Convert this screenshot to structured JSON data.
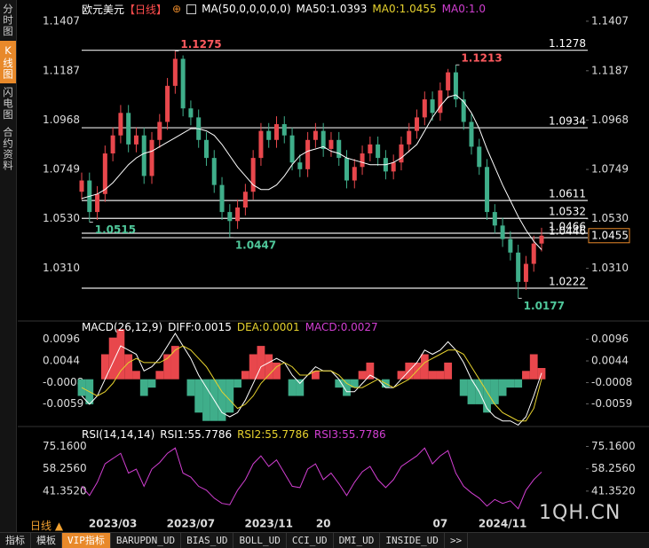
{
  "sidebar": [
    "分时图",
    "K线图",
    "闪电图",
    "合约资料"
  ],
  "period_label": "日线",
  "watermark": "1QH.CN",
  "toolbar": [
    "指标",
    "模板",
    "VIP指标",
    "BARUPDN_UD",
    "BIAS_UD",
    "BOLL_UD",
    "CCI_UD",
    "DMI_UD",
    "INSIDE_UD",
    ">>"
  ],
  "chart_data": [
    {
      "type": "candlestick",
      "title": "欧元美元",
      "period": "【日线】",
      "header_items": [
        {
          "text": "MA(50,0,0,0,0,0)",
          "color": "#ffffff"
        },
        {
          "text": "MA50:1.0393",
          "color": "#ffffff"
        },
        {
          "text": "MA0:1.0455",
          "color": "#e6d22e"
        },
        {
          "text": "MA0:1.0",
          "color": "#d23fd2"
        }
      ],
      "categories": [
        null,
        null,
        null,
        null,
        "2023/03",
        null,
        null,
        null,
        null,
        null,
        null,
        null,
        null,
        null,
        "2023/07",
        null,
        null,
        null,
        null,
        null,
        null,
        null,
        null,
        null,
        "2023/11",
        null,
        null,
        null,
        null,
        null,
        null,
        "20",
        null,
        null,
        null,
        null,
        null,
        null,
        null,
        null,
        null,
        null,
        null,
        null,
        null,
        null,
        "07",
        null,
        null,
        null,
        null,
        null,
        null,
        null,
        "2024/11",
        null,
        null,
        null,
        null,
        null
      ],
      "open": [
        1.065,
        1.07,
        1.056,
        1.064,
        1.082,
        1.09,
        1.1,
        1.086,
        1.09,
        1.072,
        1.088,
        1.096,
        1.112,
        1.124,
        1.102,
        1.098,
        1.088,
        1.08,
        1.068,
        1.056,
        1.052,
        1.058,
        1.065,
        1.08,
        1.092,
        1.088,
        1.095,
        1.09,
        1.078,
        1.075,
        1.088,
        1.092,
        1.084,
        1.088,
        1.08,
        1.07,
        1.076,
        1.082,
        1.086,
        1.08,
        1.074,
        1.078,
        1.086,
        1.092,
        1.098,
        1.106,
        1.1,
        1.11,
        1.118,
        1.106,
        1.096,
        1.085,
        1.076,
        1.056,
        1.05,
        1.044,
        1.038,
        1.025,
        1.033,
        1.042
      ],
      "high": [
        1.0735,
        1.0735,
        1.0675,
        1.0855,
        1.0935,
        1.1035,
        1.1035,
        1.0935,
        1.0935,
        1.0915,
        1.0995,
        1.1155,
        1.1275,
        1.1255,
        1.1055,
        1.1015,
        1.0915,
        1.0835,
        1.0715,
        1.0595,
        1.0615,
        1.0685,
        1.0835,
        1.0955,
        1.0955,
        1.0985,
        1.0985,
        1.0935,
        1.0815,
        1.0915,
        1.0955,
        1.0955,
        1.0915,
        1.0915,
        1.0835,
        1.0795,
        1.0855,
        1.0895,
        1.0895,
        1.0835,
        1.0815,
        1.0895,
        1.0955,
        1.1015,
        1.1095,
        1.1095,
        1.1135,
        1.1195,
        1.1213,
        1.1095,
        1.0995,
        1.0885,
        1.0795,
        1.0595,
        1.0535,
        1.0475,
        1.0415,
        1.0365,
        1.0455,
        1.049
      ],
      "low": [
        1.0615,
        1.0515,
        1.0525,
        1.0605,
        1.0785,
        1.0865,
        1.0825,
        1.0825,
        1.0685,
        1.0685,
        1.0845,
        1.0925,
        1.1085,
        1.0985,
        1.0945,
        1.0845,
        1.0765,
        1.0645,
        1.0525,
        1.0447,
        1.0485,
        1.0545,
        1.0615,
        1.0765,
        1.0845,
        1.0845,
        1.0865,
        1.0745,
        1.0715,
        1.0715,
        1.0845,
        1.0805,
        1.0805,
        1.0765,
        1.0665,
        1.0665,
        1.0725,
        1.0785,
        1.0765,
        1.0705,
        1.0705,
        1.0745,
        1.0825,
        1.0885,
        1.0945,
        1.0965,
        1.0965,
        1.1065,
        1.1025,
        1.0925,
        1.0815,
        1.0725,
        1.0525,
        1.0465,
        1.0405,
        1.0345,
        1.0177,
        1.0215,
        1.0295,
        1.0385
      ],
      "close": [
        1.07,
        1.056,
        1.064,
        1.082,
        1.09,
        1.1,
        1.086,
        1.09,
        1.072,
        1.088,
        1.096,
        1.112,
        1.124,
        1.102,
        1.098,
        1.088,
        1.08,
        1.068,
        1.056,
        1.052,
        1.058,
        1.065,
        1.08,
        1.092,
        1.088,
        1.095,
        1.09,
        1.078,
        1.075,
        1.088,
        1.092,
        1.084,
        1.088,
        1.08,
        1.07,
        1.076,
        1.082,
        1.086,
        1.08,
        1.074,
        1.078,
        1.086,
        1.092,
        1.098,
        1.106,
        1.1,
        1.11,
        1.118,
        1.106,
        1.096,
        1.085,
        1.076,
        1.056,
        1.05,
        1.044,
        1.038,
        1.025,
        1.033,
        1.042,
        1.0455
      ],
      "ma50": [
        1.062,
        1.063,
        1.064,
        1.066,
        1.069,
        1.073,
        1.077,
        1.08,
        1.082,
        1.083,
        1.085,
        1.087,
        1.089,
        1.091,
        1.093,
        1.093,
        1.092,
        1.09,
        1.086,
        1.081,
        1.076,
        1.072,
        1.068,
        1.066,
        1.066,
        1.068,
        1.072,
        1.077,
        1.081,
        1.083,
        1.084,
        1.085,
        1.083,
        1.082,
        1.08,
        1.079,
        1.078,
        1.077,
        1.077,
        1.077,
        1.078,
        1.08,
        1.083,
        1.086,
        1.092,
        1.098,
        1.103,
        1.107,
        1.108,
        1.105,
        1.1,
        1.093,
        1.084,
        1.076,
        1.068,
        1.061,
        1.054,
        1.048,
        1.043,
        1.0393
      ],
      "up_color": "#e8474c",
      "down_color": "#3fae8a",
      "ma_color": "#ffffff",
      "ylim": [
        1.0092,
        1.1446
      ],
      "yticks": [
        1.1407,
        1.1187,
        1.0968,
        1.0749,
        {
          "value": 1.053,
          "label": "1.0530"
        },
        {
          "value": 1.031,
          "label": "1.0310"
        }
      ],
      "level_lines": [
        1.1278,
        1.0934,
        1.0611,
        1.0532,
        1.0466,
        1.0446,
        1.0222
      ],
      "extremes": [
        1.1275,
        1.1213,
        1.0515,
        1.0447,
        1.0177
      ],
      "last_price": 1.0455
    },
    {
      "type": "macd",
      "header_items": [
        {
          "text": "MACD(26,12,9)",
          "color": "#ffffff"
        },
        {
          "text": "DIFF:0.0015",
          "color": "#ffffff"
        },
        {
          "text": "DEA:0.0001",
          "color": "#e6d22e"
        },
        {
          "text": "MACD:0.0027",
          "color": "#d23fd2"
        }
      ],
      "diff": [
        -0.004,
        -0.006,
        -0.004,
        0.0,
        0.004,
        0.008,
        0.007,
        0.006,
        0.002,
        0.003,
        0.005,
        0.008,
        0.011,
        0.008,
        0.005,
        0.001,
        -0.002,
        -0.005,
        -0.008,
        -0.009,
        -0.008,
        -0.005,
        -0.001,
        0.003,
        0.004,
        0.005,
        0.004,
        0.001,
        -0.001,
        0.001,
        0.003,
        0.002,
        0.002,
        0.0,
        -0.003,
        -0.003,
        -0.001,
        0.001,
        0.0,
        -0.002,
        -0.002,
        0.0,
        0.002,
        0.004,
        0.007,
        0.006,
        0.007,
        0.009,
        0.007,
        0.004,
        0.0,
        -0.003,
        -0.007,
        -0.009,
        -0.01,
        -0.01,
        -0.011,
        -0.009,
        -0.004,
        0.0015
      ],
      "dea": [
        -0.002,
        -0.003,
        -0.004,
        -0.003,
        -0.001,
        0.002,
        0.004,
        0.005,
        0.004,
        0.004,
        0.004,
        0.005,
        0.007,
        0.008,
        0.007,
        0.005,
        0.003,
        0.0,
        -0.003,
        -0.005,
        -0.007,
        -0.006,
        -0.004,
        -0.001,
        0.001,
        0.003,
        0.004,
        0.003,
        0.001,
        0.001,
        0.002,
        0.002,
        0.002,
        0.001,
        -0.001,
        -0.002,
        -0.002,
        -0.001,
        0.0,
        -0.001,
        -0.002,
        -0.001,
        0.0,
        0.002,
        0.004,
        0.005,
        0.006,
        0.007,
        0.007,
        0.006,
        0.003,
        0.0,
        -0.003,
        -0.006,
        -0.008,
        -0.009,
        -0.01,
        -0.01,
        -0.007,
        0.0001
      ],
      "macd": [
        -0.004,
        -0.006,
        0.0,
        0.006,
        0.01,
        0.012,
        0.006,
        0.002,
        -0.004,
        -0.002,
        0.002,
        0.006,
        0.008,
        0.0,
        -0.004,
        -0.008,
        -0.01,
        -0.01,
        -0.01,
        -0.008,
        -0.002,
        0.002,
        0.006,
        0.008,
        0.006,
        0.004,
        0.0,
        -0.004,
        -0.004,
        0.0,
        0.002,
        0.0,
        0.0,
        -0.002,
        -0.004,
        -0.002,
        0.002,
        0.004,
        0.0,
        -0.002,
        0.0,
        0.002,
        0.004,
        0.004,
        0.006,
        0.002,
        0.002,
        0.004,
        0.0,
        -0.004,
        -0.006,
        -0.006,
        -0.008,
        -0.006,
        -0.004,
        -0.002,
        -0.002,
        0.002,
        0.006,
        0.0027
      ],
      "diff_color": "#ffffff",
      "dea_color": "#e6d22e",
      "up_color": "#e8474c",
      "down_color": "#3fae8a",
      "ylim": [
        -0.0107,
        0.0127
      ],
      "yticks": [
        0.0096,
        0.0044,
        -0.0008,
        -0.0059
      ]
    },
    {
      "type": "line",
      "header_items": [
        {
          "text": "RSI(14,14,14)",
          "color": "#ffffff"
        },
        {
          "text": "RSI1:55.7786",
          "color": "#ffffff"
        },
        {
          "text": "RSI2:55.7786",
          "color": "#e6d22e"
        },
        {
          "text": "RSI3:55.7786",
          "color": "#d23fd2"
        }
      ],
      "values": [
        45,
        38,
        48,
        62,
        66,
        70,
        55,
        58,
        45,
        58,
        63,
        70,
        74,
        55,
        52,
        45,
        42,
        36,
        32,
        31,
        42,
        50,
        62,
        68,
        60,
        65,
        55,
        45,
        44,
        58,
        62,
        50,
        55,
        47,
        38,
        48,
        56,
        60,
        50,
        44,
        50,
        60,
        64,
        68,
        74,
        62,
        68,
        72,
        55,
        45,
        40,
        36,
        30,
        35,
        32,
        34,
        28,
        42,
        50,
        55.7786
      ],
      "color": "#d23fd2",
      "ylim": [
        25.1,
        85.56
      ],
      "yticks": [
        {
          "value": 75.16,
          "label": "75.1600"
        },
        {
          "value": 58.256,
          "label": "58.2560"
        },
        {
          "value": 41.352,
          "label": "41.3520"
        }
      ]
    }
  ]
}
